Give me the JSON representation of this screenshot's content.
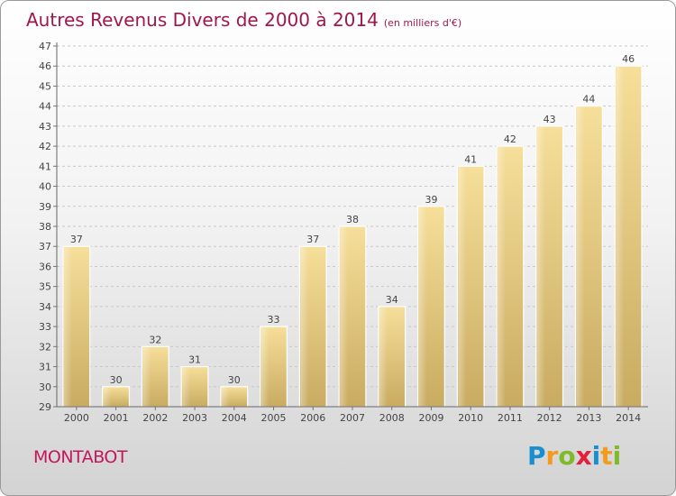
{
  "title": "Autres Revenus Divers de 2000 à 2014",
  "subtitle": "(en milliers d'€)",
  "place": "MONTABOT",
  "logo": {
    "letters": [
      "P",
      "r",
      "o",
      "x",
      "i",
      "t",
      "i"
    ],
    "colors": [
      "#1a8fd0",
      "#f39a1f",
      "#7dbb2b",
      "#e3203b",
      "#1a8fd0",
      "#f39a1f",
      "#7dbb2b"
    ]
  },
  "chart_data": {
    "type": "bar",
    "categories": [
      "2000",
      "2001",
      "2002",
      "2003",
      "2004",
      "2005",
      "2006",
      "2007",
      "2008",
      "2009",
      "2010",
      "2011",
      "2012",
      "2013",
      "2014"
    ],
    "values": [
      37,
      30,
      32,
      31,
      30,
      33,
      37,
      38,
      34,
      39,
      41,
      42,
      43,
      44,
      46
    ],
    "data_labels": [
      "37",
      "30",
      "32",
      "31",
      "30",
      "33",
      "37",
      "38",
      "34",
      "39",
      "41",
      "42",
      "43",
      "44",
      "46"
    ],
    "yticks": [
      "29",
      "30",
      "31",
      "32",
      "33",
      "34",
      "35",
      "36",
      "37",
      "38",
      "39",
      "40",
      "41",
      "42",
      "43",
      "44",
      "45",
      "46",
      "47"
    ],
    "ylim": [
      29,
      47
    ],
    "grid": true,
    "bar_color": "#e8cf86"
  }
}
